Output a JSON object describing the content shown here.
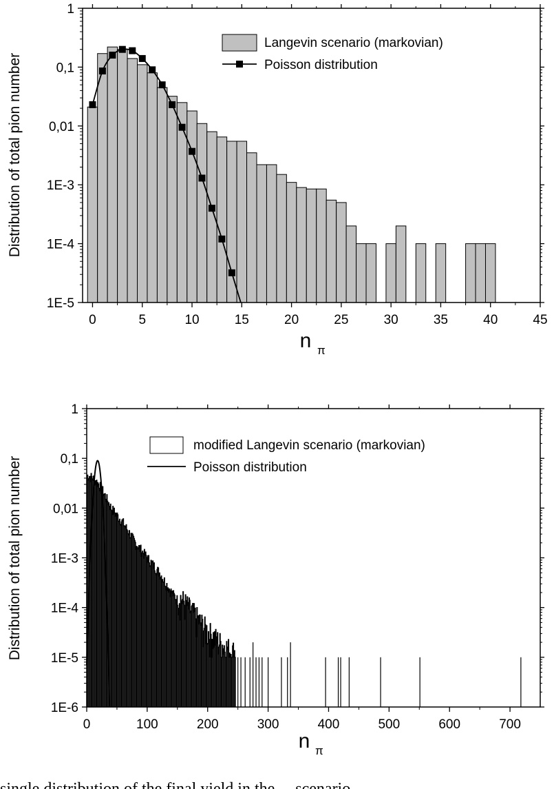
{
  "chart_data": [
    {
      "type": "bar",
      "title": "",
      "ylabel": "Distribution of total pion number",
      "xlabel": "n",
      "xlabel_sub": "π",
      "yscale": "log",
      "ylim": [
        1e-05,
        1
      ],
      "xlim": [
        -1,
        45
      ],
      "xticks": [
        0,
        5,
        10,
        15,
        20,
        25,
        30,
        35,
        40,
        45
      ],
      "xtick_labels": [
        "0",
        "5",
        "10",
        "15",
        "20",
        "25",
        "30",
        "35",
        "40",
        "45"
      ],
      "yticks": [
        1e-05,
        0.0001,
        0.001,
        0.01,
        0.1,
        1
      ],
      "ytick_labels": [
        "1E-5",
        "1E-4",
        "1E-3",
        "0,01",
        "0,1",
        "1"
      ],
      "legend": {
        "position": "top-right",
        "entries": [
          "Langevin scenario (markovian)",
          "Poisson distribution"
        ]
      },
      "series": [
        {
          "name": "Langevin scenario (markovian)",
          "kind": "histogram",
          "color": "#c0c0c0",
          "x": [
            0,
            1,
            2,
            3,
            4,
            5,
            6,
            7,
            8,
            9,
            10,
            11,
            12,
            13,
            14,
            15,
            16,
            17,
            18,
            19,
            20,
            21,
            22,
            23,
            24,
            25,
            26,
            27,
            28,
            30,
            31,
            33,
            35,
            38,
            39,
            40
          ],
          "values": [
            0.021,
            0.17,
            0.22,
            0.2,
            0.14,
            0.11,
            0.08,
            0.045,
            0.032,
            0.025,
            0.018,
            0.011,
            0.008,
            0.0065,
            0.0055,
            0.0055,
            0.0035,
            0.0022,
            0.0022,
            0.0015,
            0.0011,
            0.0009,
            0.00085,
            0.00085,
            0.00055,
            0.0005,
            0.0002,
            0.0001,
            0.0001,
            0.0001,
            0.0002,
            0.0001,
            0.0001,
            0.0001,
            0.0001,
            0.0001
          ]
        },
        {
          "name": "Poisson distribution",
          "kind": "line-markers",
          "color": "#000000",
          "x": [
            0,
            1,
            2,
            3,
            4,
            5,
            6,
            7,
            8,
            9,
            10,
            11,
            12,
            13,
            14
          ],
          "values": [
            0.023,
            0.086,
            0.16,
            0.2,
            0.19,
            0.14,
            0.09,
            0.05,
            0.023,
            0.0095,
            0.0037,
            0.0013,
            0.0004,
            0.00012,
            3.2e-05
          ]
        }
      ]
    },
    {
      "type": "bar",
      "title": "",
      "ylabel": "Distribution of total pion number",
      "xlabel": "n",
      "xlabel_sub": "π",
      "yscale": "log",
      "ylim": [
        1e-06,
        1
      ],
      "xlim": [
        0,
        750
      ],
      "xticks": [
        0,
        100,
        200,
        300,
        400,
        500,
        600,
        700
      ],
      "xtick_labels": [
        "0",
        "100",
        "200",
        "300",
        "400",
        "500",
        "600",
        "700"
      ],
      "yticks": [
        1e-06,
        1e-05,
        0.0001,
        0.001,
        0.01,
        0.1,
        1
      ],
      "ytick_labels": [
        "1E-6",
        "1E-5",
        "1E-4",
        "1E-3",
        "0,01",
        "0,1",
        "1"
      ],
      "legend": {
        "position": "top-right",
        "entries": [
          "modified Langevin scenario (markovian)",
          "Poisson distribution"
        ]
      },
      "series": [
        {
          "name": "modified Langevin scenario (markovian)",
          "kind": "histogram-outline",
          "color": "#000000",
          "envelope_x": [
            0,
            3,
            10,
            20,
            30,
            40,
            60,
            80,
            100,
            120,
            140,
            160,
            180,
            200,
            220,
            240
          ],
          "envelope_y": [
            0.045,
            0.045,
            0.04,
            0.03,
            0.018,
            0.01,
            0.005,
            0.002,
            0.001,
            0.0005,
            0.0002,
            0.0001,
            5e-05,
            2.5e-05,
            1.5e-05,
            1e-05
          ],
          "isolated_x": [
            250,
            255,
            262,
            270,
            275,
            280,
            285,
            290,
            300,
            322,
            332,
            337,
            395,
            416,
            420,
            434,
            486,
            551,
            718
          ],
          "isolated_values": [
            1e-05,
            1e-05,
            1e-05,
            1e-05,
            2e-05,
            1e-05,
            1e-05,
            1e-05,
            1e-05,
            1e-05,
            1e-05,
            2e-05,
            1e-05,
            1e-05,
            1e-05,
            1e-05,
            1e-05,
            1e-05,
            1e-05
          ]
        },
        {
          "name": "Poisson distribution",
          "kind": "line",
          "color": "#000000",
          "mean": 18,
          "peak": 0.09
        }
      ]
    }
  ],
  "caption_fragment": "single distribution of the final yield in the ... scenario"
}
